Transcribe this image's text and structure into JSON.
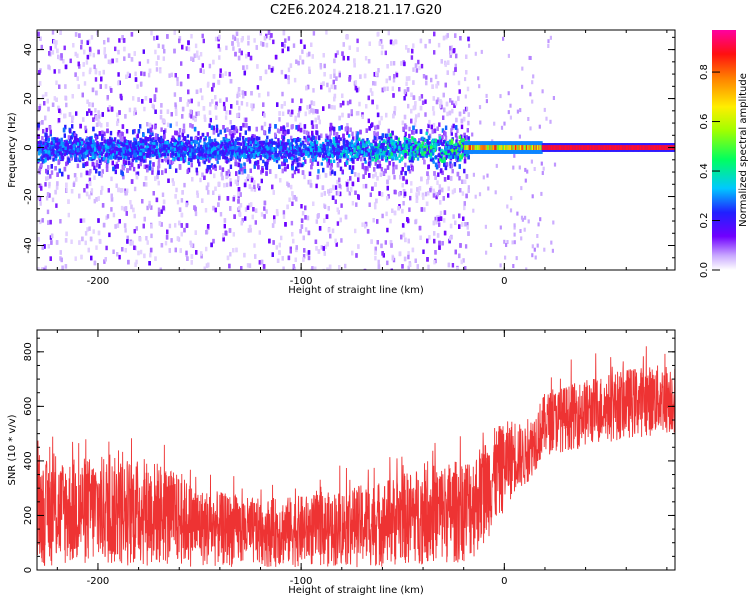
{
  "title": "C2E6.2024.218.21.17.G20",
  "colorbar": {
    "label": "Normalized spectral amplitude",
    "ticks": [
      "0.0",
      "0.2",
      "0.4",
      "0.6",
      "0.8"
    ],
    "range": [
      0,
      1
    ]
  },
  "colors": {
    "snr_line": "#ee3333",
    "ridge": "#ff1010",
    "background": "#ffffff"
  },
  "chart_data": [
    {
      "type": "heatmap",
      "xlabel": "Height of straight line (km)",
      "ylabel": "Frequency (Hz)",
      "xlim": [
        -230,
        84
      ],
      "ylim": [
        -50,
        48
      ],
      "xticks": [
        "-200",
        "-100",
        "0"
      ],
      "yticks": [
        "-40",
        "-20",
        "0",
        "20",
        "40"
      ],
      "xtick_values": [
        -200,
        -100,
        0
      ],
      "ytick_values": [
        -40,
        -20,
        0,
        20,
        40
      ],
      "description_values": {
        "ridge_frequency_hz": 0,
        "noise_band_halfwidth_hz": 10,
        "coherent_start_km": -20
      }
    },
    {
      "type": "line",
      "xlabel": "Height of straight line (km)",
      "ylabel": "SNR (10 * v/v)",
      "xlim": [
        -230,
        84
      ],
      "ylim": [
        0,
        880
      ],
      "xticks": [
        "-200",
        "-100",
        "0"
      ],
      "yticks": [
        "0",
        "200",
        "400",
        "600",
        "800"
      ],
      "xtick_values": [
        -200,
        -100,
        0
      ],
      "ytick_values": [
        0,
        200,
        400,
        600,
        800
      ],
      "envelope": {
        "x": [
          -230,
          -200,
          -170,
          -150,
          -120,
          -90,
          -60,
          -40,
          -25,
          -15,
          -5,
          5,
          10,
          20,
          40,
          60,
          84
        ],
        "upper": [
          400,
          420,
          400,
          300,
          260,
          280,
          330,
          380,
          400,
          430,
          520,
          560,
          520,
          650,
          700,
          740,
          760
        ],
        "lower": [
          10,
          10,
          10,
          10,
          10,
          10,
          10,
          20,
          20,
          40,
          150,
          280,
          300,
          420,
          450,
          480,
          500
        ]
      }
    }
  ]
}
